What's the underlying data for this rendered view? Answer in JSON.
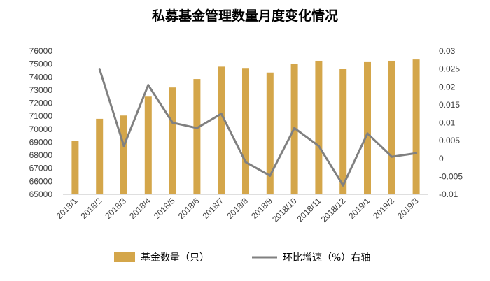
{
  "chart_data": {
    "type": "bar",
    "title": "私募基金管理数量月度变化情况",
    "categories": [
      "2018/1",
      "2018/2",
      "2018/3",
      "2018/4",
      "2018/5",
      "2018/6",
      "2018/7",
      "2018/8",
      "2018/9",
      "2018/10",
      "2018/11",
      "2018/12",
      "2019/1",
      "2019/2",
      "2019/3"
    ],
    "series": [
      {
        "name": "基金数量（只）",
        "type": "bar",
        "axis": "left",
        "color": "#D4A64A",
        "values": [
          69080,
          70800,
          71050,
          72500,
          73200,
          73850,
          74800,
          74700,
          74350,
          75000,
          75250,
          74650,
          75200,
          75250,
          75350
        ]
      },
      {
        "name": "环比增速（%）右轴",
        "type": "line",
        "axis": "right",
        "color": "#808080",
        "values": [
          null,
          0.025,
          0.0035,
          0.0205,
          0.01,
          0.0085,
          0.0125,
          -0.001,
          -0.0048,
          0.0085,
          0.0035,
          -0.0075,
          0.007,
          0.0005,
          0.0015
        ]
      }
    ],
    "y_left": {
      "range": [
        65000,
        76000
      ],
      "ticks": [
        "65000",
        "66000",
        "67000",
        "68000",
        "69000",
        "70000",
        "71000",
        "72000",
        "73000",
        "74000",
        "75000",
        "76000"
      ]
    },
    "y_right": {
      "range": [
        -0.01,
        0.03
      ],
      "ticks": [
        "-0.01",
        "-0.005",
        "0",
        "0.005",
        "0.01",
        "0.015",
        "0.02",
        "0.025",
        "0.03"
      ]
    },
    "grid": false,
    "legend": "bottom"
  }
}
